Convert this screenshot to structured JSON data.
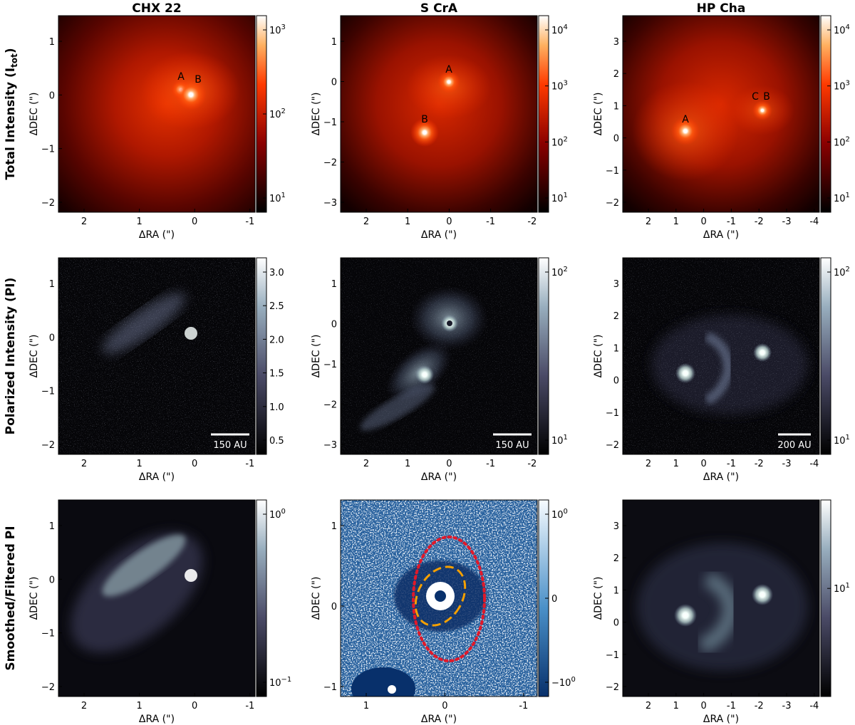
{
  "columns": [
    {
      "title": "CHX 22"
    },
    {
      "title": "S CrA"
    },
    {
      "title": "HP Cha"
    }
  ],
  "rows": [
    {
      "title_prefix": "Total Intensity (I",
      "title_sub": "tot",
      "title_suffix": ")"
    },
    {
      "title": "Polarized Intensity (PI)"
    },
    {
      "title": "Smoothed/Filtered PI"
    }
  ],
  "axes": {
    "xlabel": "ΔRA (\")",
    "ylabel": "ΔDEC (\")"
  },
  "panels": [
    {
      "id": "p00",
      "cmap": "hot",
      "cb_scale": "log",
      "xticks": [
        "2",
        "1",
        "0",
        "-1"
      ],
      "yticks": [
        "1",
        "0",
        "−1",
        "−2"
      ],
      "cbticks": [
        {
          "base": "10",
          "exp": "3"
        },
        {
          "base": "10",
          "exp": "2"
        },
        {
          "base": "10",
          "exp": "1"
        }
      ],
      "stars": [
        "A",
        "B"
      ],
      "scalebar": ""
    },
    {
      "id": "p01",
      "cmap": "hot",
      "cb_scale": "log",
      "xticks": [
        "2",
        "1",
        "0",
        "-1",
        "-2"
      ],
      "yticks": [
        "1",
        "0",
        "−1",
        "−2",
        "−3"
      ],
      "cbticks": [
        {
          "base": "10",
          "exp": "4"
        },
        {
          "base": "10",
          "exp": "3"
        },
        {
          "base": "10",
          "exp": "2"
        },
        {
          "base": "10",
          "exp": "1"
        }
      ],
      "stars": [
        "A",
        "B"
      ],
      "scalebar": ""
    },
    {
      "id": "p02",
      "cmap": "hot",
      "cb_scale": "log",
      "xticks": [
        "2",
        "1",
        "0",
        "-1",
        "-2",
        "-3",
        "-4"
      ],
      "yticks": [
        "3",
        "2",
        "1",
        "0",
        "−1",
        "−2"
      ],
      "cbticks": [
        {
          "base": "10",
          "exp": "4"
        },
        {
          "base": "10",
          "exp": "3"
        },
        {
          "base": "10",
          "exp": "2"
        },
        {
          "base": "10",
          "exp": "1"
        }
      ],
      "stars": [
        "A",
        "C",
        "B"
      ],
      "scalebar": ""
    },
    {
      "id": "p10",
      "cmap": "bone",
      "cb_scale": "linear",
      "xticks": [
        "2",
        "1",
        "0",
        "-1"
      ],
      "yticks": [
        "1",
        "0",
        "−1",
        "−2"
      ],
      "cbticks": [
        {
          "base": "3.0",
          "exp": ""
        },
        {
          "base": "2.5",
          "exp": ""
        },
        {
          "base": "2.0",
          "exp": ""
        },
        {
          "base": "1.5",
          "exp": ""
        },
        {
          "base": "1.0",
          "exp": ""
        },
        {
          "base": "0.5",
          "exp": ""
        }
      ],
      "stars": [],
      "scalebar": "150 AU"
    },
    {
      "id": "p11",
      "cmap": "bone",
      "cb_scale": "log",
      "xticks": [
        "2",
        "1",
        "0",
        "-1",
        "-2"
      ],
      "yticks": [
        "1",
        "0",
        "−1",
        "−2",
        "−3"
      ],
      "cbticks": [
        {
          "base": "10",
          "exp": "2"
        },
        {
          "base": "10",
          "exp": "1"
        }
      ],
      "stars": [],
      "scalebar": "150 AU"
    },
    {
      "id": "p12",
      "cmap": "bone",
      "cb_scale": "log",
      "xticks": [
        "2",
        "1",
        "0",
        "-1",
        "-2",
        "-3",
        "-4"
      ],
      "yticks": [
        "3",
        "2",
        "1",
        "0",
        "−1",
        "−2"
      ],
      "cbticks": [
        {
          "base": "10",
          "exp": "2"
        },
        {
          "base": "10",
          "exp": "1"
        }
      ],
      "stars": [],
      "scalebar": "200 AU"
    },
    {
      "id": "p20",
      "cmap": "bone",
      "cb_scale": "log",
      "xticks": [
        "2",
        "1",
        "0",
        "-1"
      ],
      "yticks": [
        "1",
        "0",
        "−1",
        "−2"
      ],
      "cbticks": [
        {
          "base": "10",
          "exp": "0"
        },
        {
          "base": "10",
          "exp": "−1"
        }
      ],
      "stars": [],
      "scalebar": ""
    },
    {
      "id": "p21",
      "cmap": "blues",
      "cb_scale": "symlog",
      "xticks": [
        "1",
        "0",
        "-1"
      ],
      "yticks": [
        "1",
        "0",
        "−1"
      ],
      "cbticks": [
        {
          "base": "10",
          "exp": "0"
        },
        {
          "base": "0",
          "exp": ""
        },
        {
          "base": "−10",
          "exp": "0"
        }
      ],
      "stars": [],
      "scalebar": ""
    },
    {
      "id": "p22",
      "cmap": "bone",
      "cb_scale": "log",
      "xticks": [
        "2",
        "1",
        "0",
        "-1",
        "-2",
        "-3",
        "-4"
      ],
      "yticks": [
        "3",
        "2",
        "1",
        "0",
        "−1",
        "−2"
      ],
      "cbticks": [
        {
          "base": "10",
          "exp": "1"
        }
      ],
      "stars": [],
      "scalebar": ""
    }
  ],
  "colors": {
    "hot_dark": "#1a0000",
    "hot_mid": "#b81c00",
    "hot_bright": "#ff7a14",
    "hot_white": "#ffffff",
    "bone_dark": "#060608",
    "bone_mid": "#7f8ca8",
    "bone_light": "#dde9e6",
    "blues_dark": "#0b3c7a",
    "blues_light": "#ecf3fb",
    "ellipse_red": "#e0192a",
    "ellipse_orange": "#f5a000"
  }
}
